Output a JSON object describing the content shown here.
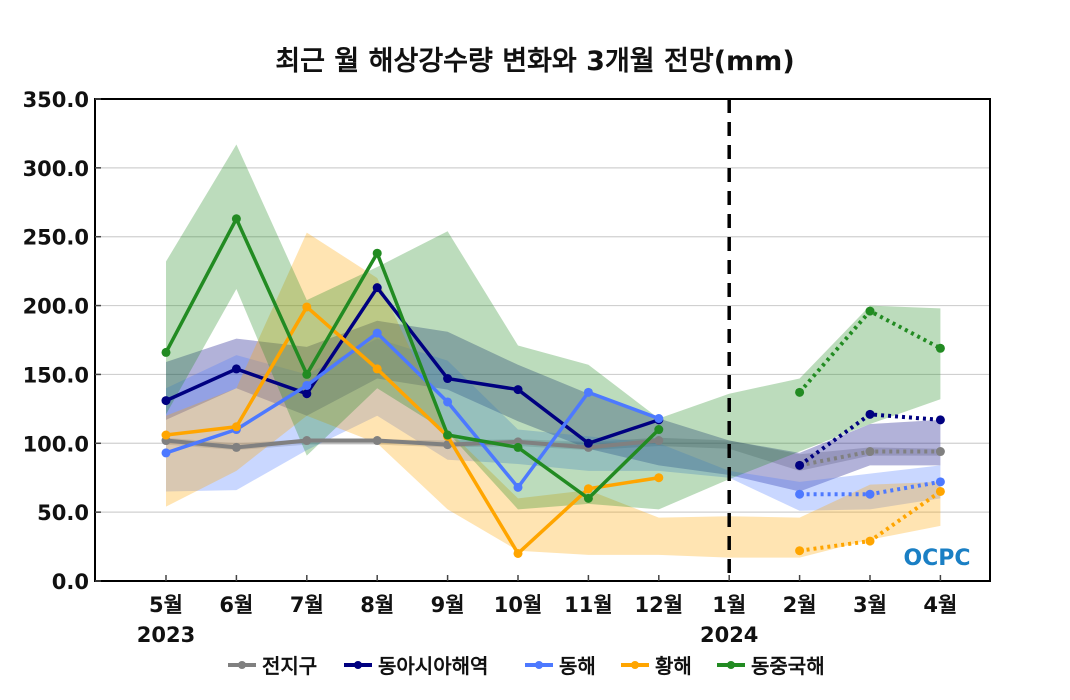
{
  "chart_data": {
    "type": "line",
    "title": "최근 월 해상강수량 변화와 3개월 전망(mm)",
    "xlabel": "",
    "ylabel": "",
    "categories": [
      "5월",
      "6월",
      "7월",
      "8월",
      "9월",
      "10월",
      "11월",
      "12월",
      "1월",
      "2월",
      "3월",
      "4월"
    ],
    "year_labels": [
      {
        "category": "5월",
        "label": "2023"
      },
      {
        "category": "1월",
        "label": "2024"
      }
    ],
    "ylim": [
      0,
      350
    ],
    "yticks": [
      0,
      50,
      100,
      150,
      200,
      250,
      300,
      350
    ],
    "ytick_labels": [
      "0.0",
      "50.0",
      "100.0",
      "150.0",
      "200.0",
      "250.0",
      "300.0",
      "350.0"
    ],
    "grid": true,
    "divider_category": "1월",
    "legend_position": "bottom",
    "watermark": "OCPC",
    "series": [
      {
        "name": "전지구",
        "color": "#808080",
        "observed": [
          102,
          97,
          102,
          102,
          99,
          101,
          97,
          102,
          null,
          null,
          null,
          null
        ],
        "forecast": [
          null,
          null,
          null,
          null,
          null,
          null,
          null,
          null,
          null,
          84,
          94,
          94
        ],
        "band_upper": [
          104,
          100,
          103,
          103,
          102,
          103,
          101,
          104,
          102,
          92,
          97,
          96
        ],
        "band_lower": [
          99,
          95,
          99,
          99,
          97,
          98,
          95,
          98,
          96,
          80,
          91,
          91
        ]
      },
      {
        "name": "동아시아해역",
        "color": "#000080",
        "observed": [
          131,
          154,
          136,
          213,
          147,
          139,
          100,
          117,
          null,
          null,
          null,
          null
        ],
        "forecast": [
          null,
          null,
          null,
          null,
          null,
          null,
          null,
          null,
          null,
          84,
          121,
          117
        ],
        "band_upper": [
          159,
          176,
          170,
          189,
          181,
          157,
          136,
          118,
          102,
          93,
          114,
          117
        ],
        "band_lower": [
          117,
          140,
          120,
          147,
          139,
          116,
          96,
          84,
          77,
          65,
          84,
          84
        ]
      },
      {
        "name": "동해",
        "color": "#4d79ff",
        "observed": [
          93,
          110,
          142,
          180,
          130,
          68,
          137,
          118,
          null,
          null,
          null,
          null
        ],
        "forecast": [
          null,
          null,
          null,
          null,
          null,
          null,
          null,
          null,
          null,
          63,
          63,
          72
        ],
        "band_upper": [
          140,
          164,
          150,
          176,
          160,
          110,
          105,
          100,
          80,
          72,
          78,
          84
        ],
        "band_lower": [
          65,
          66,
          95,
          120,
          88,
          85,
          80,
          80,
          75,
          51,
          52,
          60
        ]
      },
      {
        "name": "황해",
        "color": "#ffa500",
        "observed": [
          106,
          112,
          199,
          154,
          105,
          20,
          67,
          75,
          null,
          null,
          null,
          null
        ],
        "forecast": [
          null,
          null,
          null,
          null,
          null,
          null,
          null,
          null,
          null,
          22,
          29,
          65
        ],
        "band_upper": [
          120,
          140,
          253,
          220,
          110,
          60,
          66,
          46,
          47,
          46,
          70,
          72
        ],
        "band_lower": [
          54,
          80,
          120,
          100,
          52,
          22,
          19,
          19,
          17,
          17,
          30,
          40
        ]
      },
      {
        "name": "동중국해",
        "color": "#228b22",
        "observed": [
          166,
          263,
          150,
          238,
          106,
          97,
          60,
          110,
          null,
          null,
          null,
          null
        ],
        "forecast": [
          null,
          null,
          null,
          null,
          null,
          null,
          null,
          null,
          null,
          137,
          196,
          169
        ],
        "band_upper": [
          232,
          317,
          204,
          228,
          254,
          171,
          157,
          118,
          136,
          147,
          200,
          198
        ],
        "band_lower": [
          121,
          212,
          91,
          140,
          108,
          52,
          56,
          52,
          74,
          94,
          114,
          132
        ]
      }
    ]
  }
}
